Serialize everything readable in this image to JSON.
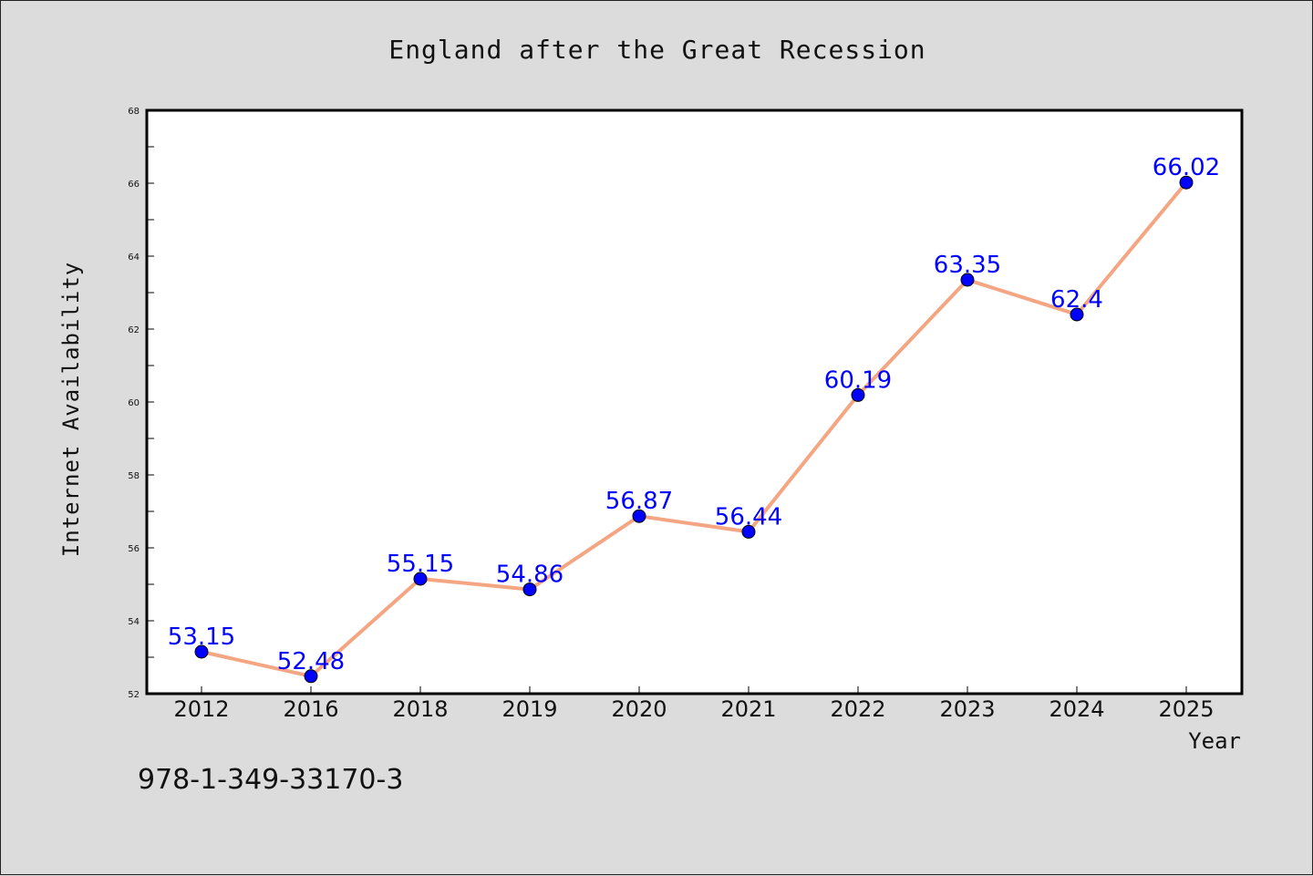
{
  "chart_data": {
    "type": "line",
    "title": "England after the Great Recession",
    "xlabel": "Year",
    "ylabel": "Internet Availability",
    "categories": [
      "2012",
      "2016",
      "2018",
      "2019",
      "2020",
      "2021",
      "2022",
      "2023",
      "2024",
      "2025"
    ],
    "series": [
      {
        "values": [
          53.15,
          52.48,
          55.15,
          54.86,
          56.87,
          56.44,
          60.19,
          63.35,
          62.4,
          66.02
        ],
        "labels": [
          "53.15",
          "52.48",
          "55.15",
          "54.86",
          "56.87",
          "56.44",
          "60.19",
          "63.35",
          "62.4",
          "66.02"
        ],
        "line_color": "#f4a582",
        "marker_color": "#0000ff"
      }
    ],
    "ylim": [
      52,
      68
    ],
    "yticks": [
      "52",
      "54",
      "56",
      "58",
      "60",
      "62",
      "64",
      "66",
      "68"
    ],
    "grid": false,
    "label_color": "#0000ff"
  },
  "annotation": "978-1-349-33170-3"
}
